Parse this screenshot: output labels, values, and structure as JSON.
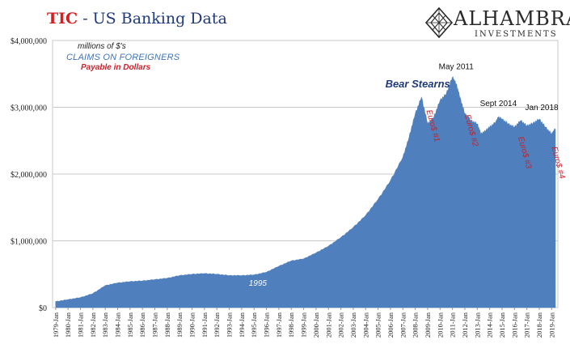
{
  "header": {
    "title_emphasis": "TIC",
    "title_rest": "- US Banking Data",
    "logo_name": "ALHAMBRA",
    "logo_sub": "INVESTMENTS"
  },
  "legend": {
    "line1": "millions of $'s",
    "line2": "CLAIMS ON FOREIGNERS",
    "line3": "Payable in Dollars"
  },
  "colors": {
    "area_fill": "#4f80bd",
    "title_red": "#d81e1e",
    "title_navy": "#1f3a78",
    "annotation_red": "#c8202a",
    "annotation_navy": "#1f3a78"
  },
  "chart_data": {
    "type": "area",
    "title": "TIC - US Banking Data",
    "ylim": [
      0,
      4000000
    ],
    "xlim": [
      1978.75,
      2019.5
    ],
    "y_ticks": [
      0,
      1000000,
      2000000,
      3000000,
      4000000
    ],
    "y_tick_labels": [
      "$0",
      "$1,000,000",
      "$2,000,000",
      "$3,000,000",
      "$4,000,000"
    ],
    "x_tick_labels": [
      "1979-Jan",
      "1980-Jan",
      "1981-Jan",
      "1982-Jan",
      "1983-Jan",
      "1984-Jan",
      "1985-Jan",
      "1986-Jan",
      "1987-Jan",
      "1988-Jan",
      "1989-Jan",
      "1990-Jan",
      "1991-Jan",
      "1992-Jan",
      "1993-Jan",
      "1994-Jan",
      "1995-Jan",
      "1996-Jan",
      "1997-Jan",
      "1998-Jan",
      "1999-Jan",
      "2000-Jan",
      "2001-Jan",
      "2002-Jan",
      "2003-Jan",
      "2004-Jan",
      "2005-Jan",
      "2006-Jan",
      "2007-Jan",
      "2008-Jan",
      "2009-Jan",
      "2010-Jan",
      "2011-Jan",
      "2012-Jan",
      "2013-Jan",
      "2014-Jan",
      "2015-Jan",
      "2016-Jan",
      "2017-Jan",
      "2018-Jan",
      "2019-Jan"
    ],
    "grid": true,
    "series": [
      {
        "x": [
          1979,
          1980,
          1981,
          1982,
          1983,
          1984,
          1985,
          1986,
          1987,
          1988,
          1989,
          1990,
          1991,
          1992,
          1993,
          1994,
          1995,
          1996,
          1997,
          1998,
          1999,
          2000,
          2001,
          2002,
          2003,
          2004,
          2005,
          2006,
          2007,
          2007.5,
          2008,
          2008.5,
          2009,
          2009.5,
          2010,
          2010.5,
          2011,
          2011.3,
          2011.6,
          2012,
          2012.5,
          2013,
          2013.3,
          2013.7,
          2014,
          2014.5,
          2014.7,
          2015,
          2015.5,
          2016,
          2016.5,
          2017,
          2017.5,
          2018,
          2018.5,
          2019,
          2019.3
        ],
        "y": [
          90000,
          120000,
          150000,
          210000,
          330000,
          370000,
          390000,
          400000,
          420000,
          440000,
          480000,
          500000,
          510000,
          500000,
          480000,
          480000,
          490000,
          530000,
          620000,
          700000,
          730000,
          820000,
          920000,
          1050000,
          1200000,
          1380000,
          1620000,
          1900000,
          2250000,
          2550000,
          2900000,
          3150000,
          2750000,
          2850000,
          3100000,
          3200000,
          3450000,
          3350000,
          3150000,
          2900000,
          2800000,
          2750000,
          2600000,
          2650000,
          2700000,
          2780000,
          2850000,
          2820000,
          2750000,
          2700000,
          2800000,
          2720000,
          2760000,
          2820000,
          2700000,
          2600000,
          2680000
        ]
      }
    ],
    "annotations": [
      {
        "text": "Bear Stearns",
        "x": 2008.2,
        "y": 3300000,
        "color": "#1f3a78"
      },
      {
        "text": "May 2011",
        "x": 2011.3,
        "y": 3570000,
        "color": "#111111"
      },
      {
        "text": "Sept 2014",
        "x": 2014.7,
        "y": 3020000,
        "color": "#111111"
      },
      {
        "text": "Jan 2018",
        "x": 2018.2,
        "y": 2960000,
        "color": "#111111"
      },
      {
        "text": "1995",
        "x": 1995.3,
        "y": 330000,
        "color": "#ffffff"
      },
      {
        "text": "Euro$ #1",
        "x": 2008.9,
        "y": 2950000,
        "color": "#c8202a",
        "rotate": true
      },
      {
        "text": "Euro$ #2",
        "x": 2012.0,
        "y": 2880000,
        "color": "#c8202a",
        "rotate": true
      },
      {
        "text": "Euro$ #3",
        "x": 2016.3,
        "y": 2550000,
        "color": "#c8202a",
        "rotate": true
      },
      {
        "text": "Euro$ #4",
        "x": 2019.0,
        "y": 2400000,
        "color": "#c8202a",
        "rotate": true
      }
    ]
  }
}
